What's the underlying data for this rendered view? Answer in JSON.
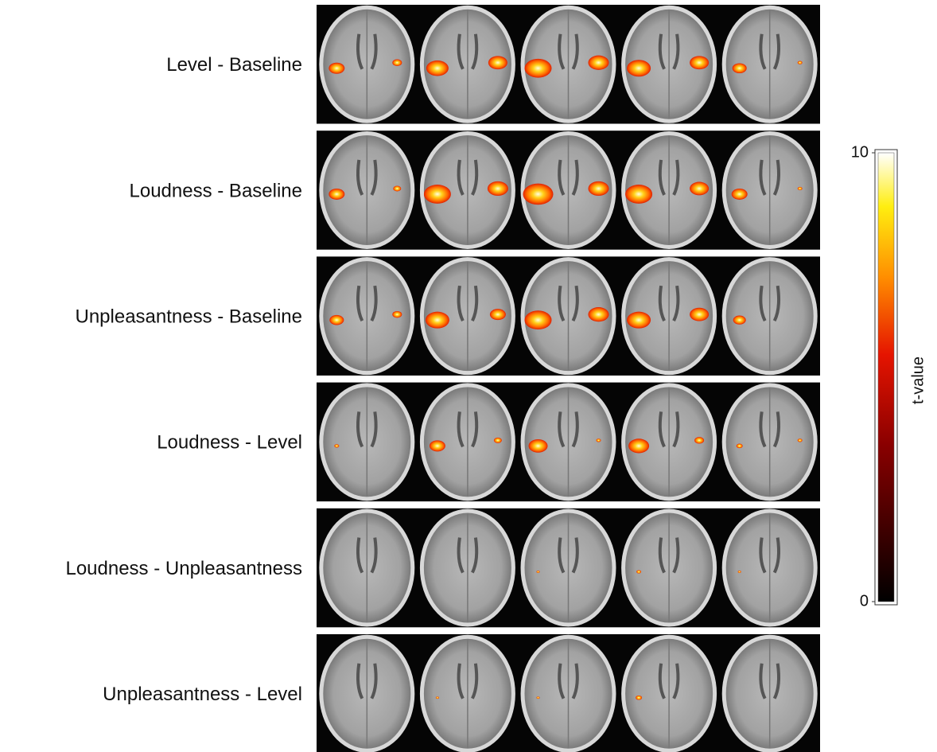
{
  "rows": [
    {
      "label": "Level  - Baseline"
    },
    {
      "label": "Loudness  - Baseline"
    },
    {
      "label": "Unpleasantness  - Baseline"
    },
    {
      "label": "Loudness  - Level"
    },
    {
      "label": "Loudness  - Unpleasantness"
    },
    {
      "label": "Unpleasantness  - Level"
    }
  ],
  "colorbar": {
    "label": "t-value",
    "ticks": [
      0,
      10
    ]
  }
}
